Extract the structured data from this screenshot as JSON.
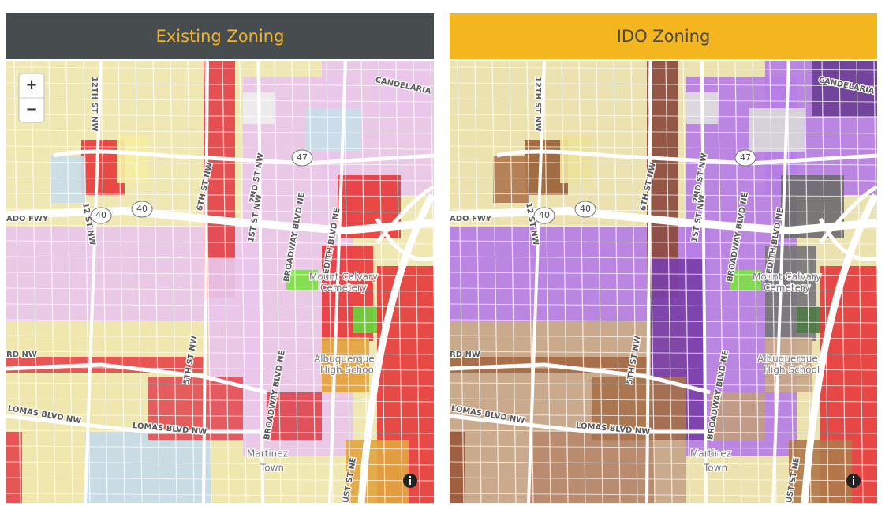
{
  "panels": [
    {
      "title": "Existing Zoning"
    },
    {
      "title": "IDO Zoning"
    }
  ],
  "zoom": {
    "in": "+",
    "out": "−"
  },
  "map_labels": [
    "CANDELARIA",
    "ADO FWY",
    "40",
    "40",
    "47",
    "12TH ST NW",
    "12 ST NW",
    "6TH ST NW",
    "2ND ST NW",
    "1ST ST NW",
    "BROADWAY BLVD NE",
    "EDITH BLVD NE",
    "Mount Calvary",
    "Cemetery",
    "Albuquerque",
    "High School",
    "RD NW",
    "LOMAS BLVD NW",
    "LOMAS BLVD NW",
    "5TH ST NW",
    "BROADWAY BLVD NE",
    "Martinez",
    "Town",
    "UST ST NE"
  ]
}
